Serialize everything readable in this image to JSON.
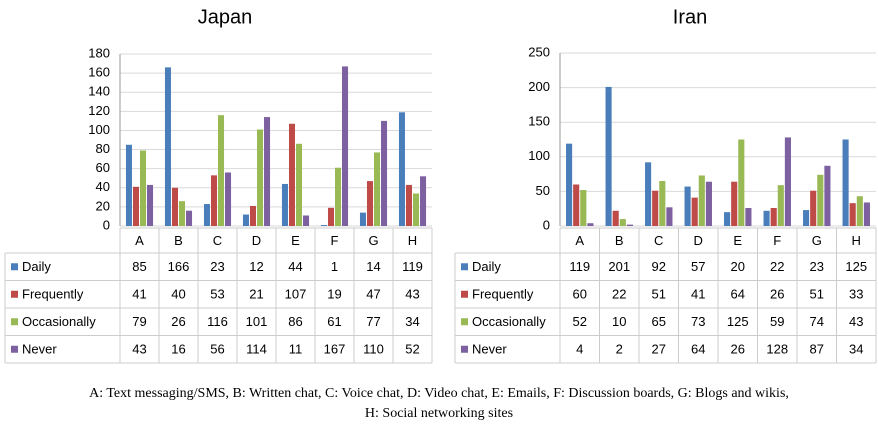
{
  "chart_data": [
    {
      "type": "bar",
      "title": "Japan",
      "categories": [
        "A",
        "B",
        "C",
        "D",
        "E",
        "F",
        "G",
        "H"
      ],
      "series": [
        {
          "name": "Daily",
          "color": "#4a7ebb",
          "values": [
            85,
            166,
            23,
            12,
            44,
            1,
            14,
            119
          ]
        },
        {
          "name": "Frequently",
          "color": "#be4b48",
          "values": [
            41,
            40,
            53,
            21,
            107,
            19,
            47,
            43
          ]
        },
        {
          "name": "Occasionally",
          "color": "#98b954",
          "values": [
            79,
            26,
            116,
            101,
            86,
            61,
            77,
            34
          ]
        },
        {
          "name": "Never",
          "color": "#7d60a0",
          "values": [
            43,
            16,
            56,
            114,
            11,
            167,
            110,
            52
          ]
        }
      ],
      "ylim": [
        0,
        180
      ],
      "yticks": [
        0,
        20,
        40,
        60,
        80,
        100,
        120,
        140,
        160,
        180
      ],
      "grid": true
    },
    {
      "type": "bar",
      "title": "Iran",
      "categories": [
        "A",
        "B",
        "C",
        "D",
        "E",
        "F",
        "G",
        "H"
      ],
      "series": [
        {
          "name": "Daily",
          "color": "#4a7ebb",
          "values": [
            119,
            201,
            92,
            57,
            20,
            22,
            23,
            125
          ]
        },
        {
          "name": "Frequently",
          "color": "#be4b48",
          "values": [
            60,
            22,
            51,
            41,
            64,
            26,
            51,
            33
          ]
        },
        {
          "name": "Occasionally",
          "color": "#98b954",
          "values": [
            52,
            10,
            65,
            73,
            125,
            59,
            74,
            43
          ]
        },
        {
          "name": "Never",
          "color": "#7d60a0",
          "values": [
            4,
            2,
            27,
            64,
            26,
            128,
            87,
            34
          ]
        }
      ],
      "ylim": [
        0,
        250
      ],
      "yticks": [
        0,
        50,
        100,
        150,
        200,
        250
      ],
      "grid": true
    }
  ],
  "caption": [
    "A: Text messaging/SMS, B: Written chat, C: Voice chat, D: Video chat, E: Emails, F: Discussion boards, G: Blogs and wikis,",
    "H: Social networking sites"
  ]
}
